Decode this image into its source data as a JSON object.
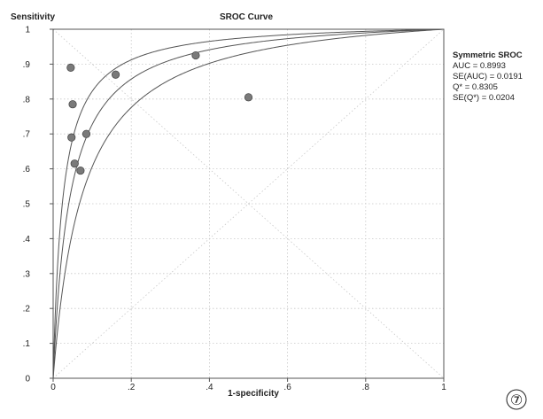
{
  "chart_data": {
    "type": "scatter",
    "title": "SROC Curve",
    "xlabel": "1-specificity",
    "ylabel": "Sensitivity",
    "xlim": [
      0,
      1
    ],
    "ylim": [
      0,
      1
    ],
    "x_ticks": [
      "0",
      ".2",
      ".4",
      ".6",
      ".8",
      "1"
    ],
    "y_ticks": [
      "0",
      ".1",
      ".2",
      ".3",
      ".4",
      ".5",
      ".6",
      ".7",
      ".8",
      ".9",
      "1"
    ],
    "grid": true,
    "points": [
      {
        "x": 0.045,
        "y": 0.89
      },
      {
        "x": 0.05,
        "y": 0.785
      },
      {
        "x": 0.047,
        "y": 0.69
      },
      {
        "x": 0.085,
        "y": 0.7
      },
      {
        "x": 0.055,
        "y": 0.615
      },
      {
        "x": 0.07,
        "y": 0.595
      },
      {
        "x": 0.16,
        "y": 0.87
      },
      {
        "x": 0.365,
        "y": 0.925
      },
      {
        "x": 0.5,
        "y": 0.805
      }
    ],
    "curves": [
      {
        "role": "upper-bound",
        "Q": 0.8305,
        "shift": 0.55
      },
      {
        "role": "sroc",
        "Q": 0.8305,
        "shift": 0
      },
      {
        "role": "lower-bound",
        "Q": 0.8305,
        "shift": -0.55
      }
    ],
    "legend_position": "right",
    "stats_title": "Symmetric SROC",
    "stats": [
      "AUC = 0.8993",
      "SE(AUC) = 0.0191",
      "Q* = 0.8305",
      "SE(Q*) = 0.0204"
    ]
  },
  "figure_number": "⑦"
}
